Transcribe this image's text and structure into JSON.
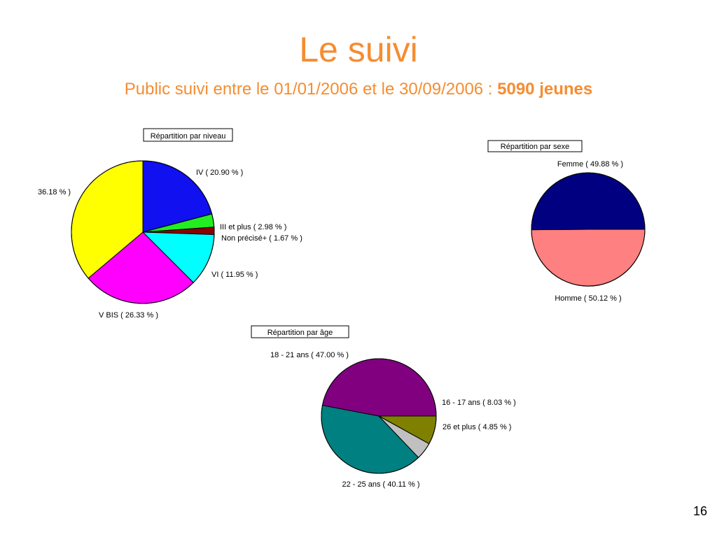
{
  "slide": {
    "title": "Le suivi",
    "subtitle_text": "Public suivi entre le 01/01/2006 et le 30/09/2006 : ",
    "subtitle_bold": "5090 jeunes",
    "page_number": "16"
  },
  "colors": {
    "title": "#f58d31"
  },
  "chart_data": [
    {
      "type": "pie",
      "title": "Répartition par niveau",
      "slices": [
        {
          "label": "IV  ( 20.90 % )",
          "value": 20.9,
          "color": "#1010f0"
        },
        {
          "label": "III et plus  ( 2.98 % )",
          "value": 2.98,
          "color": "#22ee22"
        },
        {
          "label": "Non précisé+ ( 1.67 % )",
          "value": 1.67,
          "color": "#8b0000"
        },
        {
          "label": "VI  ( 11.95 % )",
          "value": 11.95,
          "color": "#00ffff"
        },
        {
          "label": "V BIS  ( 26.33 % )",
          "value": 26.33,
          "color": "#ff00ff"
        },
        {
          "label": "36.18 % )",
          "value": 36.18,
          "color": "#ffff00"
        }
      ]
    },
    {
      "type": "pie",
      "title": "Répartition par sexe",
      "slices": [
        {
          "label": "Femme ( 49.88 % )",
          "value": 49.88,
          "color": "#ff8080"
        },
        {
          "label": "Homme ( 50.12 % )",
          "value": 50.12,
          "color": "#000080"
        }
      ]
    },
    {
      "type": "pie",
      "title": "Répartition par âge",
      "slices": [
        {
          "label": "16 - 17 ans ( 8.03 % )",
          "value": 8.03,
          "color": "#808000"
        },
        {
          "label": "26 et plus  ( 4.85 % )",
          "value": 4.85,
          "color": "#c0c0c0"
        },
        {
          "label": "22 - 25 ans ( 40.11 % )",
          "value": 40.11,
          "color": "#008080"
        },
        {
          "label": "18 - 21 ans ( 47.00 % )",
          "value": 47.0,
          "color": "#800080"
        }
      ]
    }
  ]
}
